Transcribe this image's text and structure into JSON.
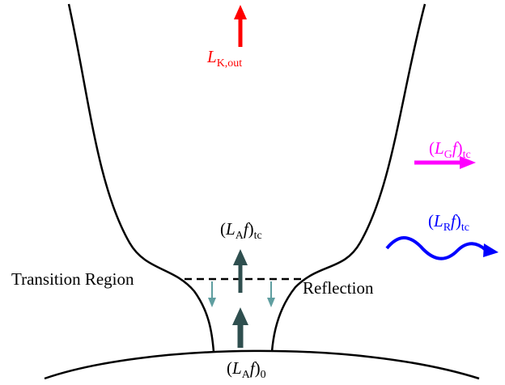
{
  "labels": {
    "k_out": [
      {
        "t": "L",
        "italic": true
      },
      {
        "t": "K,out",
        "sub": true
      }
    ],
    "g_tc": [
      {
        "t": "("
      },
      {
        "t": "L",
        "italic": true
      },
      {
        "t": "G",
        "sub": true
      },
      {
        "t": "f",
        "italic": true
      },
      {
        "t": ")"
      },
      {
        "t": "tc",
        "sub": true
      }
    ],
    "r_tc": [
      {
        "t": "("
      },
      {
        "t": "L",
        "italic": true
      },
      {
        "t": "R",
        "sub": true
      },
      {
        "t": "f",
        "italic": true
      },
      {
        "t": ")"
      },
      {
        "t": "tc",
        "sub": true
      }
    ],
    "a_tc": [
      {
        "t": "("
      },
      {
        "t": "L",
        "italic": true
      },
      {
        "t": "A",
        "sub": true
      },
      {
        "t": "f",
        "italic": true
      },
      {
        "t": ")"
      },
      {
        "t": "tc",
        "sub": true
      }
    ],
    "transition": [
      {
        "t": "Transition Region"
      }
    ],
    "reflection": [
      {
        "t": "Reflection"
      }
    ],
    "a_0": [
      {
        "t": "("
      },
      {
        "t": "L",
        "italic": true
      },
      {
        "t": "A",
        "sub": true
      },
      {
        "t": "f",
        "italic": true
      },
      {
        "t": ")"
      },
      {
        "t": "0",
        "sub": true
      }
    ]
  }
}
